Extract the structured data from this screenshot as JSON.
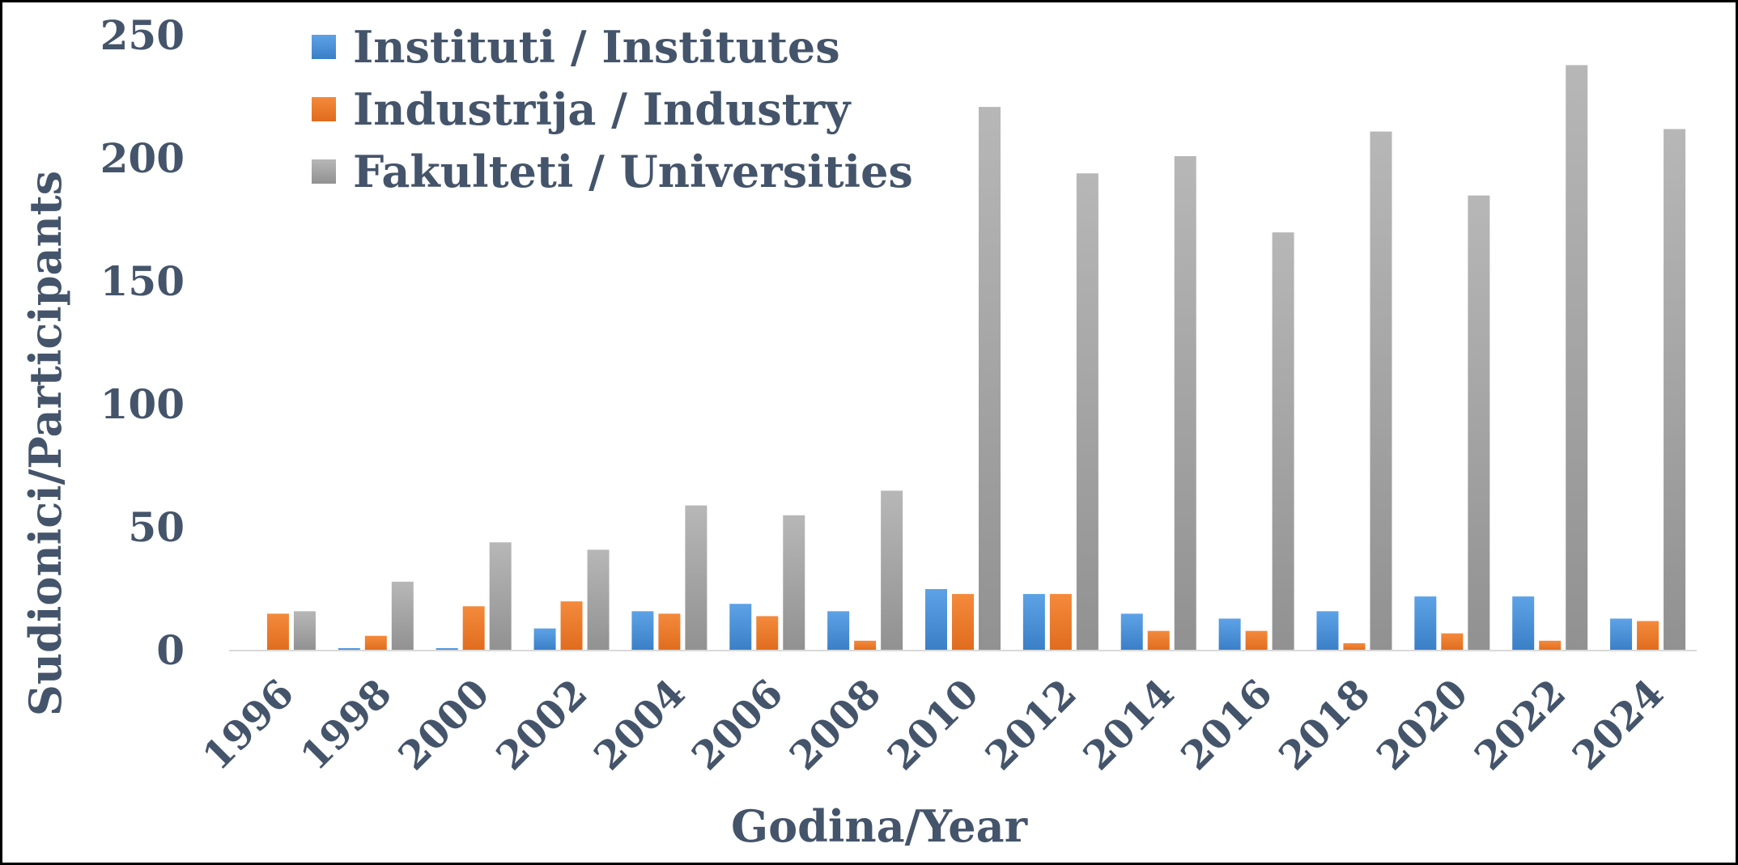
{
  "chart_data": {
    "type": "bar",
    "title": "",
    "xlabel": "Godina/Year",
    "ylabel": "Sudionici/Participants",
    "ylim": [
      0,
      250
    ],
    "yticks": [
      0,
      50,
      100,
      150,
      200,
      250
    ],
    "grid": false,
    "legend_position": "top-left",
    "categories": [
      "1996",
      "1998",
      "2000",
      "2002",
      "2004",
      "2006",
      "2008",
      "2010",
      "2012",
      "2014",
      "2016",
      "2018",
      "2020",
      "2022",
      "2024"
    ],
    "series": [
      {
        "name": "Instituti / Institutes",
        "color": "#4a90d9",
        "values": [
          0,
          1,
          1,
          9,
          16,
          19,
          16,
          25,
          23,
          15,
          13,
          16,
          22,
          22,
          13
        ]
      },
      {
        "name": "Industrija / Industry",
        "color": "#ed7d31",
        "values": [
          15,
          6,
          18,
          20,
          15,
          14,
          4,
          23,
          23,
          8,
          8,
          3,
          7,
          4,
          12
        ]
      },
      {
        "name": "Fakulteti / Universities",
        "color": "#a5a5a5",
        "values": [
          16,
          28,
          44,
          41,
          59,
          55,
          65,
          221,
          194,
          201,
          170,
          211,
          185,
          238,
          212
        ]
      }
    ]
  }
}
